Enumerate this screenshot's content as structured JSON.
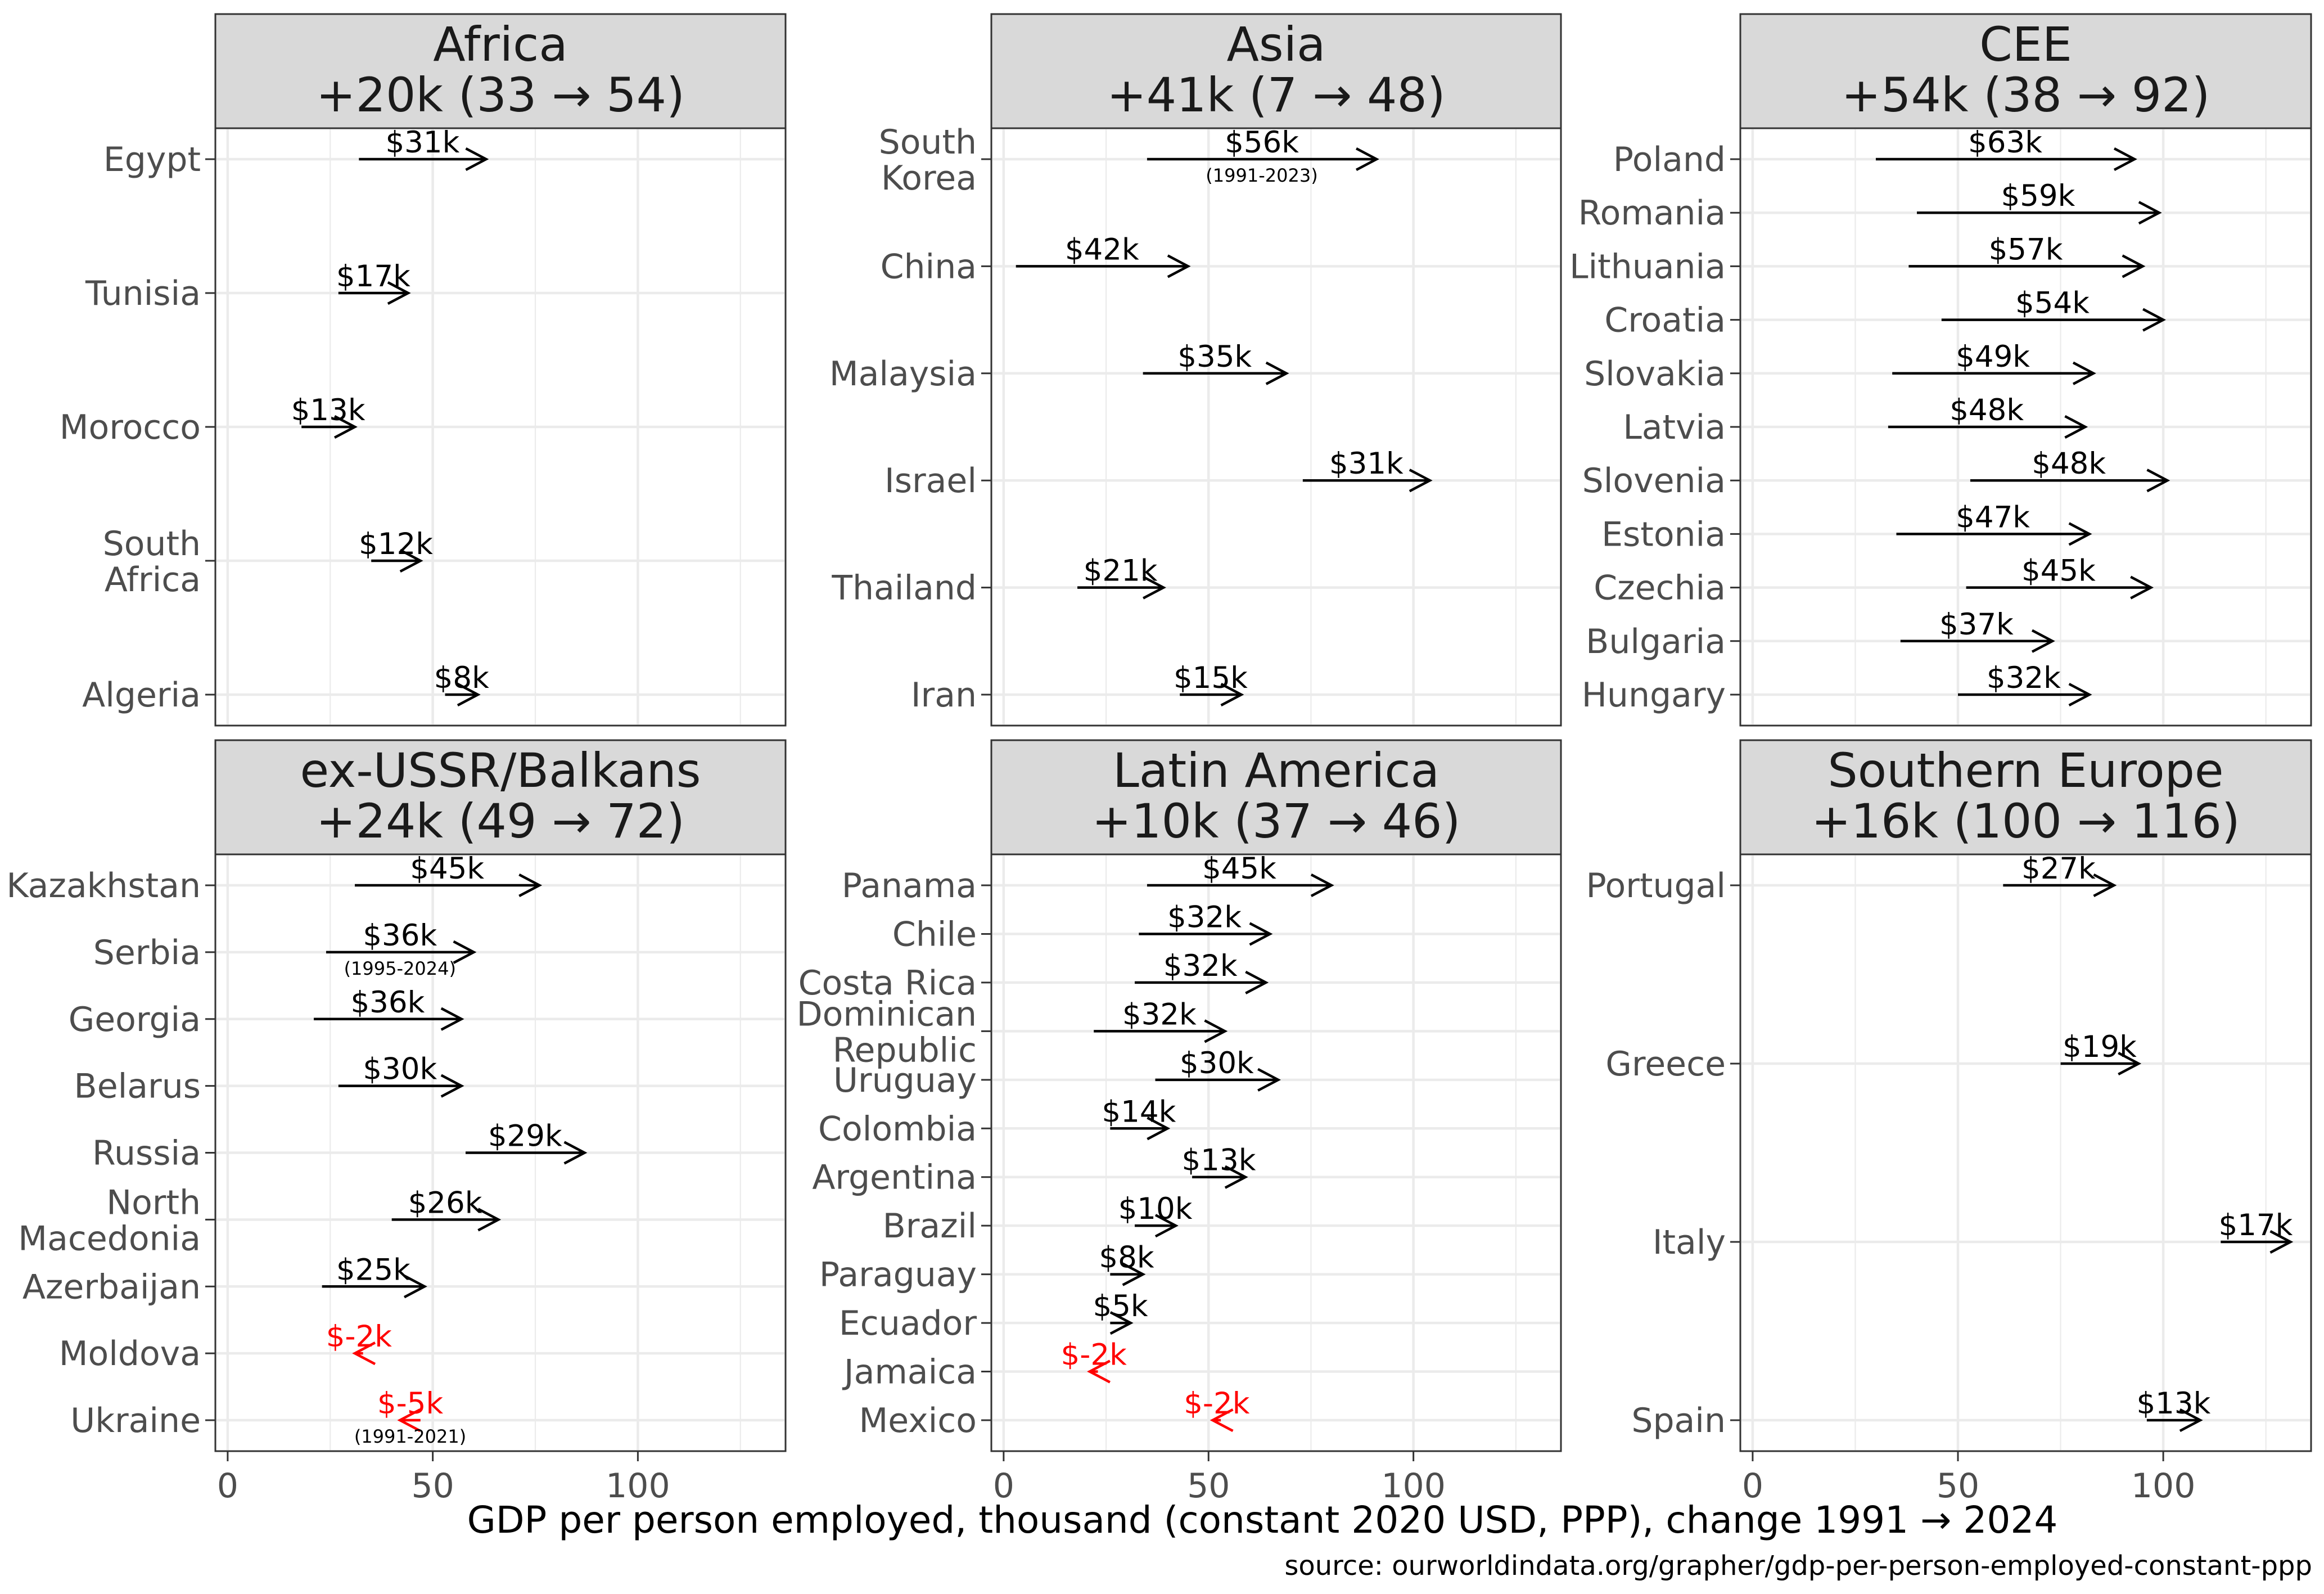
{
  "chart_data": {
    "type": "arrow-dot-faceted",
    "xlabel": "GDP per person employed, thousand (constant 2020 USD, PPP), change 1991 → 2024",
    "caption": "source: ourworldindata.org/grapher/gdp-per-person-employed-constant-ppp",
    "xlim": [
      -3,
      136
    ],
    "x_ticks": [
      0,
      50,
      100
    ],
    "x_tick_labels": [
      "0",
      "50",
      "100"
    ],
    "x_minor_ticks": [
      25,
      75,
      125
    ],
    "colors": {
      "increase": "#000000",
      "decrease": "#ff0000"
    },
    "panels": [
      {
        "name": "Africa",
        "title": [
          "Africa",
          "+20k (33 → 54)"
        ],
        "countries": [
          {
            "label": [
              "Egypt"
            ],
            "start": 32,
            "end": 63,
            "value_label": "$31k"
          },
          {
            "label": [
              "Tunisia"
            ],
            "start": 27,
            "end": 44,
            "value_label": "$17k"
          },
          {
            "label": [
              "Morocco"
            ],
            "start": 18,
            "end": 31,
            "value_label": "$13k"
          },
          {
            "label": [
              "South",
              "Africa"
            ],
            "start": 35,
            "end": 47,
            "value_label": "$12k"
          },
          {
            "label": [
              "Algeria"
            ],
            "start": 53,
            "end": 61,
            "value_label": "$8k"
          }
        ]
      },
      {
        "name": "Asia",
        "title": [
          "Asia",
          "+41k (7 → 48)"
        ],
        "countries": [
          {
            "label": [
              "South",
              "Korea"
            ],
            "start": 35,
            "end": 91,
            "value_label": "$56k",
            "note": "(1991-2023)"
          },
          {
            "label": [
              "China"
            ],
            "start": 3,
            "end": 45,
            "value_label": "$42k"
          },
          {
            "label": [
              "Malaysia"
            ],
            "start": 34,
            "end": 69,
            "value_label": "$35k"
          },
          {
            "label": [
              "Israel"
            ],
            "start": 73,
            "end": 104,
            "value_label": "$31k"
          },
          {
            "label": [
              "Thailand"
            ],
            "start": 18,
            "end": 39,
            "value_label": "$21k"
          },
          {
            "label": [
              "Iran"
            ],
            "start": 43,
            "end": 58,
            "value_label": "$15k"
          }
        ]
      },
      {
        "name": "CEE",
        "title": [
          "CEE",
          "+54k (38 → 92)"
        ],
        "countries": [
          {
            "label": [
              "Poland"
            ],
            "start": 30,
            "end": 93,
            "value_label": "$63k"
          },
          {
            "label": [
              "Romania"
            ],
            "start": 40,
            "end": 99,
            "value_label": "$59k"
          },
          {
            "label": [
              "Lithuania"
            ],
            "start": 38,
            "end": 95,
            "value_label": "$57k"
          },
          {
            "label": [
              "Croatia"
            ],
            "start": 46,
            "end": 100,
            "value_label": "$54k"
          },
          {
            "label": [
              "Slovakia"
            ],
            "start": 34,
            "end": 83,
            "value_label": "$49k"
          },
          {
            "label": [
              "Latvia"
            ],
            "start": 33,
            "end": 81,
            "value_label": "$48k"
          },
          {
            "label": [
              "Slovenia"
            ],
            "start": 53,
            "end": 101,
            "value_label": "$48k"
          },
          {
            "label": [
              "Estonia"
            ],
            "start": 35,
            "end": 82,
            "value_label": "$47k"
          },
          {
            "label": [
              "Czechia"
            ],
            "start": 52,
            "end": 97,
            "value_label": "$45k"
          },
          {
            "label": [
              "Bulgaria"
            ],
            "start": 36,
            "end": 73,
            "value_label": "$37k"
          },
          {
            "label": [
              "Hungary"
            ],
            "start": 50,
            "end": 82,
            "value_label": "$32k"
          }
        ]
      },
      {
        "name": "ex-USSR/Balkans",
        "title": [
          "ex-USSR/Balkans",
          "+24k (49 → 72)"
        ],
        "countries": [
          {
            "label": [
              "Kazakhstan"
            ],
            "start": 31,
            "end": 76,
            "value_label": "$45k"
          },
          {
            "label": [
              "Serbia"
            ],
            "start": 24,
            "end": 60,
            "value_label": "$36k",
            "note": "(1995-2024)"
          },
          {
            "label": [
              "Georgia"
            ],
            "start": 21,
            "end": 57,
            "value_label": "$36k"
          },
          {
            "label": [
              "Belarus"
            ],
            "start": 27,
            "end": 57,
            "value_label": "$30k"
          },
          {
            "label": [
              "Russia"
            ],
            "start": 58,
            "end": 87,
            "value_label": "$29k"
          },
          {
            "label": [
              "North",
              "Macedonia"
            ],
            "start": 40,
            "end": 66,
            "value_label": "$26k"
          },
          {
            "label": [
              "Azerbaijan"
            ],
            "start": 23,
            "end": 48,
            "value_label": "$25k"
          },
          {
            "label": [
              "Moldova"
            ],
            "start": 33,
            "end": 31,
            "value_label": "$-2k"
          },
          {
            "label": [
              "Ukraine"
            ],
            "start": 47,
            "end": 42,
            "value_label": "$-5k",
            "note": "(1991-2021)"
          }
        ]
      },
      {
        "name": "Latin America",
        "title": [
          "Latin America",
          "+10k (37 → 46)"
        ],
        "countries": [
          {
            "label": [
              "Panama"
            ],
            "start": 35,
            "end": 80,
            "value_label": "$45k"
          },
          {
            "label": [
              "Chile"
            ],
            "start": 33,
            "end": 65,
            "value_label": "$32k"
          },
          {
            "label": [
              "Costa Rica"
            ],
            "start": 32,
            "end": 64,
            "value_label": "$32k"
          },
          {
            "label": [
              "Dominican",
              "Republic"
            ],
            "start": 22,
            "end": 54,
            "value_label": "$32k"
          },
          {
            "label": [
              "Uruguay"
            ],
            "start": 37,
            "end": 67,
            "value_label": "$30k"
          },
          {
            "label": [
              "Colombia"
            ],
            "start": 26,
            "end": 40,
            "value_label": "$14k"
          },
          {
            "label": [
              "Argentina"
            ],
            "start": 46,
            "end": 59,
            "value_label": "$13k"
          },
          {
            "label": [
              "Brazil"
            ],
            "start": 32,
            "end": 42,
            "value_label": "$10k"
          },
          {
            "label": [
              "Paraguay"
            ],
            "start": 26,
            "end": 34,
            "value_label": "$8k"
          },
          {
            "label": [
              "Ecuador"
            ],
            "start": 26,
            "end": 31,
            "value_label": "$5k"
          },
          {
            "label": [
              "Jamaica"
            ],
            "start": 23,
            "end": 21,
            "value_label": "$-2k"
          },
          {
            "label": [
              "Mexico"
            ],
            "start": 53,
            "end": 51,
            "value_label": "$-2k"
          }
        ]
      },
      {
        "name": "Southern Europe",
        "title": [
          "Southern Europe",
          "+16k (100 → 116)"
        ],
        "countries": [
          {
            "label": [
              "Portugal"
            ],
            "start": 61,
            "end": 88,
            "value_label": "$27k"
          },
          {
            "label": [
              "Greece"
            ],
            "start": 75,
            "end": 94,
            "value_label": "$19k"
          },
          {
            "label": [
              "Italy"
            ],
            "start": 114,
            "end": 131,
            "value_label": "$17k"
          },
          {
            "label": [
              "Spain"
            ],
            "start": 96,
            "end": 109,
            "value_label": "$13k"
          }
        ]
      }
    ]
  }
}
